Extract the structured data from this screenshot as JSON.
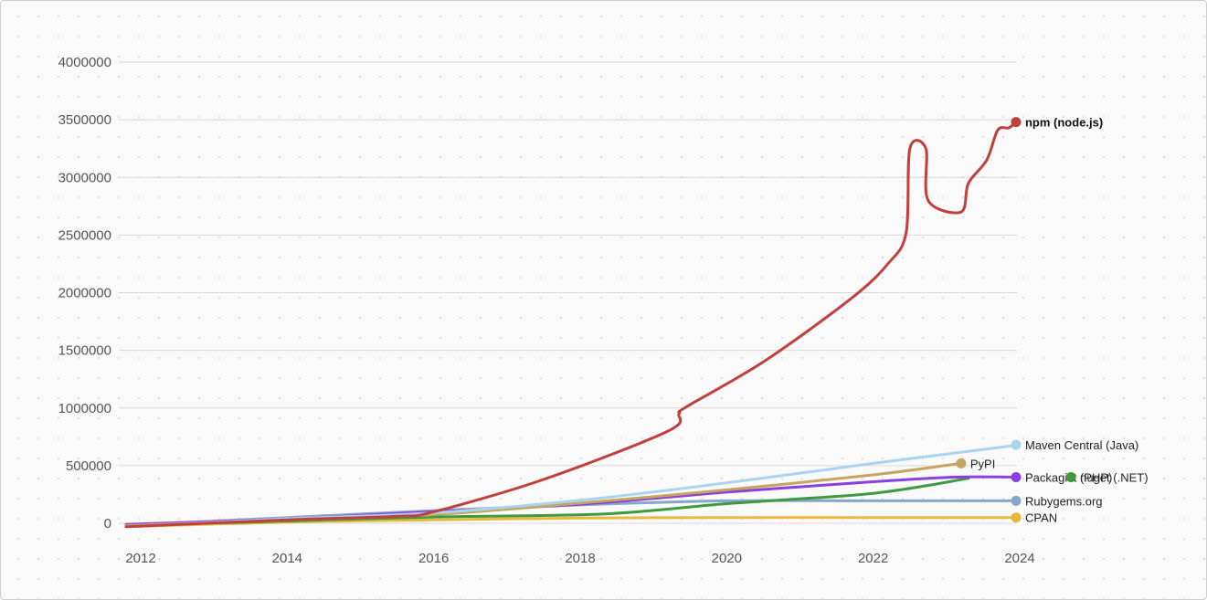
{
  "chart_data": {
    "type": "line",
    "title": "",
    "xlabel": "",
    "ylabel": "",
    "xlim": [
      2011.85,
      2024.1
    ],
    "ylim": [
      0,
      4000000
    ],
    "grid": true,
    "x_ticks": [
      "2012",
      "2014",
      "2016",
      "2018",
      "2020",
      "2022",
      "2024"
    ],
    "y_ticks": [
      "0",
      "500000",
      "1000000",
      "1500000",
      "2000000",
      "2500000",
      "3000000",
      "3500000",
      "4000000"
    ],
    "series": [
      {
        "name": "CPAN",
        "color": "#e8b93b",
        "points": [
          [
            2011.8,
            -30000
          ],
          [
            2014,
            10000
          ],
          [
            2016,
            30000
          ],
          [
            2018,
            45000
          ],
          [
            2020,
            50000
          ],
          [
            2022,
            50000
          ],
          [
            2024,
            50000
          ]
        ]
      },
      {
        "name": "Rubygems.org",
        "color": "#88a6c8",
        "points": [
          [
            2011.8,
            -20000
          ],
          [
            2014,
            50000
          ],
          [
            2016,
            110000
          ],
          [
            2018,
            160000
          ],
          [
            2020,
            195000
          ],
          [
            2022,
            195000
          ],
          [
            2024,
            195000
          ]
        ]
      },
      {
        "name": "nuget (.NET)",
        "color": "#3e9a3f",
        "points": [
          [
            2011.8,
            -20000
          ],
          [
            2014,
            20000
          ],
          [
            2016,
            55000
          ],
          [
            2018.3,
            80000
          ],
          [
            2020,
            170000
          ],
          [
            2022,
            260000
          ],
          [
            2023.3,
            390000
          ]
        ]
      },
      {
        "name": "Packagist (PHP)",
        "color": "#8a3fe0",
        "points": [
          [
            2011.8,
            -10000
          ],
          [
            2014,
            40000
          ],
          [
            2016,
            100000
          ],
          [
            2018,
            165000
          ],
          [
            2020,
            270000
          ],
          [
            2022,
            360000
          ],
          [
            2023.1,
            400000
          ],
          [
            2024,
            400000
          ]
        ]
      },
      {
        "name": "PyPI",
        "color": "#c6a55e",
        "points": [
          [
            2011.8,
            -20000
          ],
          [
            2014,
            30000
          ],
          [
            2016,
            75000
          ],
          [
            2018,
            175000
          ],
          [
            2020,
            290000
          ],
          [
            2022,
            420000
          ],
          [
            2023.2,
            520000
          ]
        ]
      },
      {
        "name": "Maven Central (Java)",
        "color": "#a9d4f0",
        "points": [
          [
            2011.8,
            -30000
          ],
          [
            2014,
            40000
          ],
          [
            2016,
            90000
          ],
          [
            2018,
            200000
          ],
          [
            2020,
            350000
          ],
          [
            2022,
            520000
          ],
          [
            2024,
            680000
          ]
        ]
      },
      {
        "name": "npm (node.js)",
        "color": "#c1403d",
        "points": [
          [
            2011.8,
            -30000
          ],
          [
            2014,
            30000
          ],
          [
            2015.5,
            60000
          ],
          [
            2016,
            100000
          ],
          [
            2017.5,
            380000
          ],
          [
            2019.2,
            800000
          ],
          [
            2019.35,
            950000
          ],
          [
            2019.45,
            1010000
          ],
          [
            2020.5,
            1400000
          ],
          [
            2021.7,
            1950000
          ],
          [
            2022.2,
            2250000
          ],
          [
            2022.45,
            2520000
          ],
          [
            2022.5,
            3250000
          ],
          [
            2022.72,
            3250000
          ],
          [
            2022.75,
            2800000
          ],
          [
            2023.2,
            2700000
          ],
          [
            2023.3,
            2950000
          ],
          [
            2023.55,
            3150000
          ],
          [
            2023.7,
            3410000
          ],
          [
            2023.85,
            3430000
          ],
          [
            2023.95,
            3480000
          ]
        ]
      }
    ],
    "end_labels": [
      {
        "name": "npm (node.js)",
        "x": 2023.95,
        "y": 3480000,
        "bold": true
      },
      {
        "name": "Maven Central (Java)",
        "x": 2023.95,
        "y": 680000
      },
      {
        "name": "PyPI",
        "x": 2023.2,
        "y": 520000
      },
      {
        "name": "Packagist (PHP)",
        "x": 2023.95,
        "y": 400000
      },
      {
        "name": "nuget (.NET)",
        "x": 2024.7,
        "y": 400000
      },
      {
        "name": "Rubygems.org",
        "x": 2023.95,
        "y": 195000
      },
      {
        "name": "CPAN",
        "x": 2023.95,
        "y": 50000
      }
    ]
  }
}
